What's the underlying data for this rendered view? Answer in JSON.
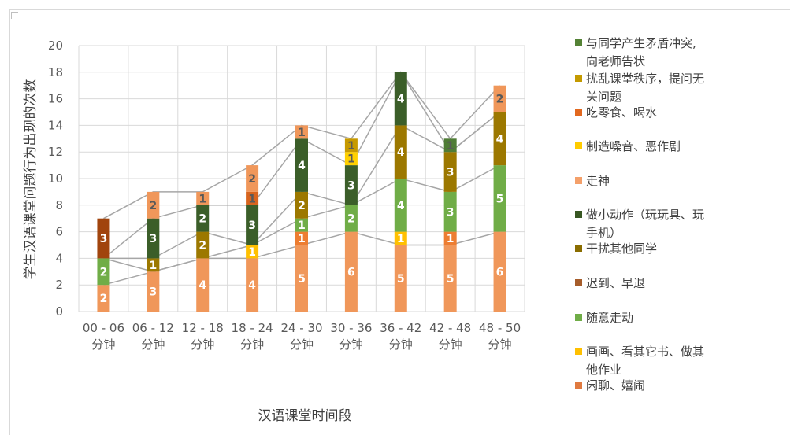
{
  "chart_data": {
    "type": "bar",
    "stacked": true,
    "title": "",
    "xlabel": "汉语课堂时间段",
    "ylabel": "学生汉语课堂问题行为出现的次数",
    "ylim": [
      0,
      20
    ],
    "yticks": [
      0,
      2,
      4,
      6,
      8,
      10,
      12,
      14,
      16,
      18,
      20
    ],
    "grid": true,
    "legend_position": "right",
    "categories": [
      [
        "00 - 06",
        "分钟"
      ],
      [
        "06 - 12",
        "分钟"
      ],
      [
        "12 - 18",
        "分钟"
      ],
      [
        "18 - 24",
        "分钟"
      ],
      [
        "24 - 30",
        "分钟"
      ],
      [
        "30 - 36",
        "分钟"
      ],
      [
        "36 - 42",
        "分钟"
      ],
      [
        "42 - 48",
        "分钟"
      ],
      [
        "48 - 50",
        "分钟"
      ]
    ],
    "series": [
      {
        "name": "走神",
        "color": "#f0975a",
        "label_color": "#ffffff",
        "values": [
          2,
          3,
          4,
          4,
          5,
          6,
          5,
          5,
          6
        ]
      },
      {
        "name": "闲聊、嬉闹",
        "color": "#ed7d31",
        "label_color": "#ffffff",
        "values": [
          0,
          0,
          0,
          0,
          1,
          0,
          0,
          1,
          0
        ]
      },
      {
        "name": "画画、看其它书、做其他作业",
        "color": "#ffc000",
        "label_color": "#ffffff",
        "values": [
          0,
          0,
          0,
          1,
          0,
          0,
          1,
          0,
          0
        ]
      },
      {
        "name": "随意走动",
        "color": "#70ad47",
        "label_color": "#ffffff",
        "values": [
          2,
          0,
          0,
          0,
          1,
          2,
          4,
          3,
          5
        ]
      },
      {
        "name": "干扰其他同学",
        "color": "#9c7800",
        "label_color": "#ffffff",
        "values": [
          0,
          1,
          2,
          0,
          2,
          0,
          4,
          3,
          4
        ]
      },
      {
        "name": "做小动作（玩玩具、玩手机）",
        "color": "#3b5e29",
        "label_color": "#ffffff",
        "values": [
          0,
          3,
          2,
          3,
          4,
          3,
          4,
          0,
          0
        ]
      },
      {
        "name": "制造噪音、恶作剧",
        "color": "#ffd000",
        "label_color": "#595959",
        "values": [
          0,
          0,
          0,
          0,
          0,
          1,
          0,
          0,
          0
        ]
      },
      {
        "name": "扰乱课堂秩序，提问无关问题",
        "color": "#c79a00",
        "label_color": "#595959",
        "values": [
          0,
          0,
          0,
          0,
          0,
          1,
          0,
          0,
          0
        ]
      },
      {
        "name": "吃零食、喝水",
        "color": "#d8641e",
        "label_color": "#595959",
        "values": [
          0,
          0,
          0,
          1,
          0,
          0,
          0,
          0,
          0
        ]
      },
      {
        "name": "迟到、早退",
        "color": "#a1440d",
        "label_color": "#ffffff",
        "values": [
          3,
          0,
          0,
          0,
          0,
          0,
          0,
          0,
          0
        ]
      },
      {
        "name": "与同学产生矛盾冲突，向老师告状",
        "color": "#4f7c36",
        "label_color": "#595959",
        "values": [
          0,
          0,
          0,
          0,
          0,
          0,
          0,
          1,
          0
        ]
      },
      {
        "name": "走神(2)",
        "color": "#f0975a",
        "label_color": "#595959",
        "values": [
          0,
          2,
          1,
          2,
          1,
          0,
          0,
          0,
          2
        ]
      }
    ],
    "legend": [
      {
        "color": "#548235",
        "lines": [
          "与同学产生矛盾冲突,",
          "向老师告状"
        ]
      },
      {
        "color": "#c49a00",
        "lines": [
          "扰乱课堂秩序，提问无",
          "关问题"
        ]
      },
      {
        "color": "#e2681f",
        "lines": [
          "吃零食、喝水"
        ]
      },
      {
        "color": "#ffcc00",
        "lines": [
          "制造噪音、恶作剧"
        ]
      },
      {
        "color": "#f4a06a",
        "lines": [
          "走神"
        ]
      },
      {
        "color": "#385723",
        "lines": [
          "做小动作（玩玩具、玩",
          "手机）"
        ]
      },
      {
        "color": "#8a6d00",
        "lines": [
          "干扰其他同学"
        ]
      },
      {
        "color": "#a65d2b",
        "lines": [
          "迟到、早退"
        ]
      },
      {
        "color": "#70ad47",
        "lines": [
          "随意走动"
        ]
      },
      {
        "color": "#ffc000",
        "lines": [
          "画画、看其它书、做其",
          "他作业"
        ]
      },
      {
        "color": "#e07a40",
        "lines": [
          "闲聊、嬉闹"
        ]
      }
    ]
  }
}
